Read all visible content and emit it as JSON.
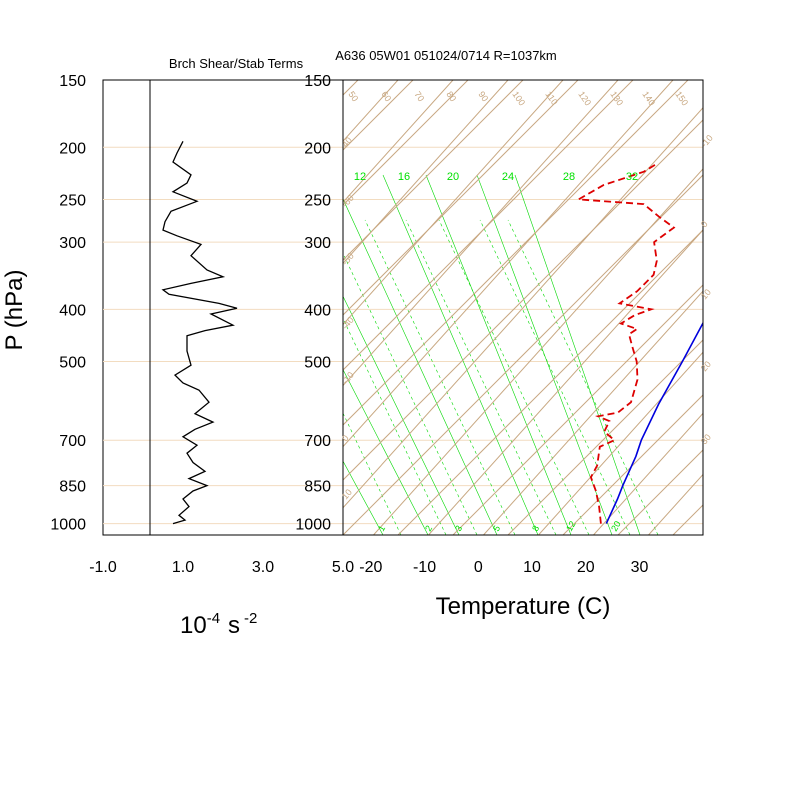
{
  "colors": {
    "isobar": "#f2dcc0",
    "diagonal": "#c8a882",
    "mixing_ratio": "#00d800",
    "temperature": "#0000dd",
    "dewpoint": "#dd0000",
    "axis": "#000000"
  },
  "chart_data": [
    {
      "type": "line",
      "title": "Brch Shear/Stab Terms",
      "xlabel": "10^-4 s^-2",
      "xlabel_base": "10",
      "xlabel_exp1": "-4",
      "xlabel_unit": "s",
      "xlabel_exp2": "-2",
      "ylabel": "P (hPa)",
      "xlim": [
        -1.0,
        5.0
      ],
      "x_ticks": [
        "-1.0",
        "1.0",
        "3.0",
        "5.0"
      ],
      "y_log": true,
      "ylim": [
        1050,
        150
      ],
      "pressure_ticks": [
        "150",
        "200",
        "250",
        "300",
        "400",
        "500",
        "700",
        "850",
        "1000"
      ],
      "reference_line_x": 1.0,
      "series": [
        {
          "points": [
            [
              1.0,
              195
            ],
            [
              0.85,
              205
            ],
            [
              0.75,
              213
            ],
            [
              1.2,
              225
            ],
            [
              1.1,
              233
            ],
            [
              0.75,
              242
            ],
            [
              1.35,
              252
            ],
            [
              0.7,
              263
            ],
            [
              0.55,
              275
            ],
            [
              0.5,
              285
            ],
            [
              0.85,
              292
            ],
            [
              1.45,
              303
            ],
            [
              1.2,
              318
            ],
            [
              1.6,
              338
            ],
            [
              2.0,
              348
            ],
            [
              1.2,
              358
            ],
            [
              0.5,
              368
            ],
            [
              0.65,
              375
            ],
            [
              1.9,
              390
            ],
            [
              2.35,
              398
            ],
            [
              1.7,
              408
            ],
            [
              2.25,
              428
            ],
            [
              1.55,
              438
            ],
            [
              1.1,
              448
            ],
            [
              1.1,
              478
            ],
            [
              1.2,
              508
            ],
            [
              0.8,
              530
            ],
            [
              1.0,
              548
            ],
            [
              1.4,
              565
            ],
            [
              1.65,
              595
            ],
            [
              1.3,
              625
            ],
            [
              1.75,
              648
            ],
            [
              1.3,
              668
            ],
            [
              1.0,
              690
            ],
            [
              1.35,
              715
            ],
            [
              1.1,
              740
            ],
            [
              1.25,
              770
            ],
            [
              1.55,
              800
            ],
            [
              1.15,
              825
            ],
            [
              1.6,
              850
            ],
            [
              1.25,
              870
            ],
            [
              1.0,
              900
            ],
            [
              1.15,
              930
            ],
            [
              0.9,
              965
            ],
            [
              1.05,
              985
            ],
            [
              0.75,
              1000
            ]
          ]
        }
      ]
    },
    {
      "type": "line",
      "title": "A636 05W01 051024/0714 R=1037km",
      "xlabel": "Temperature (C)",
      "xlim": [
        -23.5,
        43.5
      ],
      "x_ticks": [
        "-20",
        "-10",
        "0",
        "10",
        "20",
        "30"
      ],
      "y_log": true,
      "ylim": [
        1050,
        150
      ],
      "pressure_ticks": [
        "150",
        "200",
        "250",
        "300",
        "400",
        "500",
        "700",
        "850",
        "1000"
      ],
      "dry_adiabat_labels": [
        "50",
        "60",
        "70",
        "80",
        "90",
        "100",
        "110",
        "120",
        "130",
        "140",
        "150"
      ],
      "isotherm_labels": [
        "-10",
        "0",
        "10",
        "20",
        "30",
        "40",
        "-60",
        "-50",
        "-40"
      ],
      "mixing_ratio_top_labels": [
        "12",
        "16",
        "20",
        "24",
        "28",
        "32"
      ],
      "mixing_ratio_bottom_labels": [
        "1",
        "2",
        "3",
        "5",
        "8",
        "12",
        "20"
      ],
      "series": [
        {
          "name": "temperature",
          "points": [
            [
              25.5,
              1000
            ],
            [
              23.0,
              900
            ],
            [
              21.5,
              850
            ],
            [
              18.5,
              750
            ],
            [
              16.5,
              700
            ],
            [
              13.0,
              600
            ],
            [
              9.5,
              500
            ],
            [
              5.0,
              400
            ],
            [
              0.0,
              350
            ],
            [
              -4.0,
              300
            ],
            [
              -10.0,
              250
            ],
            [
              -18.0,
              200
            ],
            [
              -30.0,
              175
            ]
          ]
        },
        {
          "name": "dewpoint",
          "points": [
            [
              24.5,
              1000
            ],
            [
              21.0,
              930
            ],
            [
              17.5,
              870
            ],
            [
              14.0,
              820
            ],
            [
              13.0,
              780
            ],
            [
              10.0,
              720
            ],
            [
              11.5,
              700
            ],
            [
              8.0,
              675
            ],
            [
              7.0,
              645
            ],
            [
              4.0,
              632
            ],
            [
              7.0,
              622
            ],
            [
              7.5,
              595
            ],
            [
              4.5,
              540
            ],
            [
              1.0,
              500
            ],
            [
              -2.5,
              470
            ],
            [
              -5.5,
              445
            ],
            [
              -5.0,
              435
            ],
            [
              -9.0,
              425
            ],
            [
              -8.0,
              410
            ],
            [
              -6.0,
              400
            ],
            [
              -13.0,
              390
            ],
            [
              -12.0,
              370
            ],
            [
              -12.0,
              345
            ],
            [
              -14.0,
              325
            ],
            [
              -18.0,
              300
            ],
            [
              -17.0,
              282
            ],
            [
              -21.5,
              270
            ],
            [
              -27.0,
              255
            ],
            [
              -40.0,
              250
            ],
            [
              -38.0,
              235
            ],
            [
              -33.0,
              222
            ],
            [
              -32.0,
              214
            ]
          ]
        }
      ]
    }
  ]
}
